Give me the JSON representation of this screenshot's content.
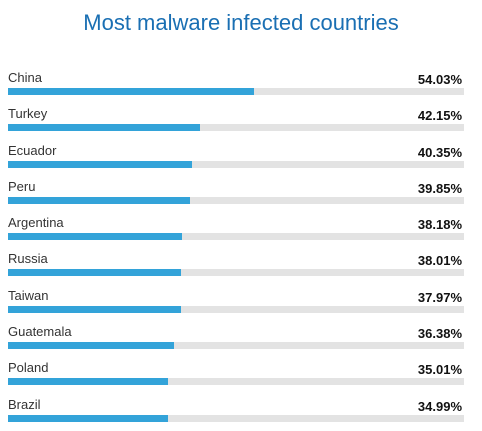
{
  "chart_data": {
    "type": "bar",
    "orientation": "horizontal",
    "title": "Most malware infected countries",
    "categories": [
      "China",
      "Turkey",
      "Ecuador",
      "Peru",
      "Argentina",
      "Russia",
      "Taiwan",
      "Guatemala",
      "Poland",
      "Brazil"
    ],
    "values": [
      54.03,
      42.15,
      40.35,
      39.85,
      38.18,
      38.01,
      37.97,
      36.38,
      35.01,
      34.99
    ],
    "value_labels": [
      "54.03%",
      "42.15%",
      "40.35%",
      "39.85%",
      "38.18%",
      "38.01%",
      "37.97%",
      "36.38%",
      "35.01%",
      "34.99%"
    ],
    "unit": "%",
    "xlim": [
      0,
      100
    ],
    "grid": false,
    "bar_color": "#33a3d9",
    "track_color": "#e3e3e3"
  },
  "colors": {
    "title": "#1a6fb3"
  }
}
